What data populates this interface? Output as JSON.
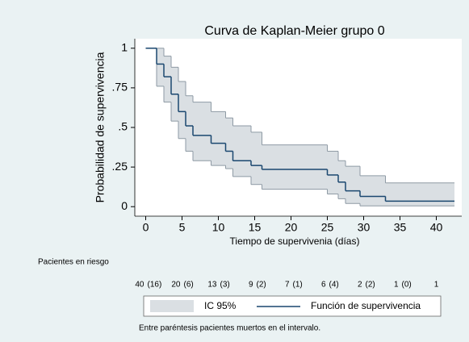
{
  "chart_data": {
    "type": "kaplan-meier",
    "title": "Curva de Kaplan-Meier grupo 0",
    "x_label": "Tiempo de supervivenia (días)",
    "y_label": "Probabilidad de supervivencia",
    "x": [
      0,
      1.5,
      2.5,
      3.5,
      4.5,
      5.5,
      6.5,
      9,
      11,
      12,
      14.5,
      16,
      25,
      26.5,
      27.5,
      29.5,
      33,
      42.5
    ],
    "series": [
      {
        "name": "Función de supervivencia",
        "color": "#1a476f",
        "values": [
          1,
          0.9,
          0.82,
          0.71,
          0.6,
          0.51,
          0.45,
          0.4,
          0.35,
          0.29,
          0.26,
          0.235,
          0.2,
          0.155,
          0.1,
          0.065,
          0.035,
          0.035
        ]
      }
    ],
    "ci_name": "IC 95%",
    "ci_color": "#dadfe3",
    "ci_edge_color": "#8e9aa4",
    "ci_lower": [
      1,
      0.76,
      0.66,
      0.54,
      0.43,
      0.35,
      0.29,
      0.26,
      0.24,
      0.19,
      0.14,
      0.11,
      0.08,
      0.05,
      0.02,
      0.005,
      0.005,
      0.005
    ],
    "ci_upper": [
      1,
      1,
      0.95,
      0.88,
      0.79,
      0.7,
      0.66,
      0.6,
      0.56,
      0.51,
      0.47,
      0.39,
      0.35,
      0.29,
      0.255,
      0.195,
      0.15,
      0.15
    ],
    "xlim": [
      -1.5,
      43.5
    ],
    "ylim": [
      -0.06,
      1.06
    ],
    "xticks": [
      0,
      5,
      10,
      15,
      20,
      25,
      30,
      35,
      40
    ],
    "yticks": [
      0,
      {
        "value": 0.25,
        "label": ".25"
      },
      {
        "value": 0.5,
        "label": ".5"
      },
      {
        "value": 0.75,
        "label": ".75"
      },
      1
    ],
    "at_risk": {
      "title": "Pacientes en riesgo",
      "n": [
        40,
        20,
        13,
        9,
        7,
        6,
        2,
        1,
        1
      ],
      "events": [
        {
          "value": 16,
          "label": "(16)"
        },
        {
          "value": 6,
          "label": "(6)"
        },
        {
          "value": 3,
          "label": "(3)"
        },
        {
          "value": 2,
          "label": "(2)"
        },
        {
          "value": 1,
          "label": "(1)"
        },
        {
          "value": 4,
          "label": "(4)"
        },
        {
          "value": 2,
          "label": "(2)"
        },
        {
          "value": 0,
          "label": "(0)"
        },
        null
      ]
    },
    "note": "Entre paréntesis pacientes muertos en el intervalo."
  }
}
